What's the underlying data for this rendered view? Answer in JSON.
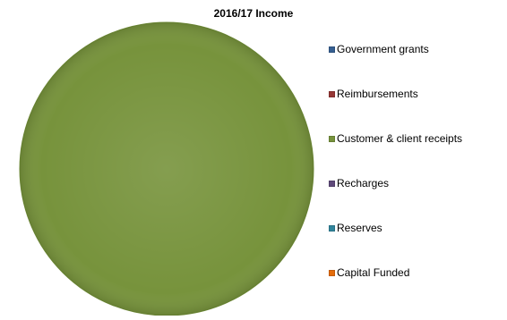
{
  "chart_data": {
    "type": "pie",
    "title": "2016/17 Income",
    "categories": [
      "Government grants",
      "Reimbursements",
      "Customer & client receipts",
      "Recharges",
      "Reserves",
      "Capital Funded"
    ],
    "values": [
      0,
      0,
      100,
      0,
      0,
      0
    ],
    "colors": [
      "#365f91",
      "#963634",
      "#77933c",
      "#604a7b",
      "#31859c",
      "#e46c0a"
    ],
    "legend_position": "right"
  }
}
